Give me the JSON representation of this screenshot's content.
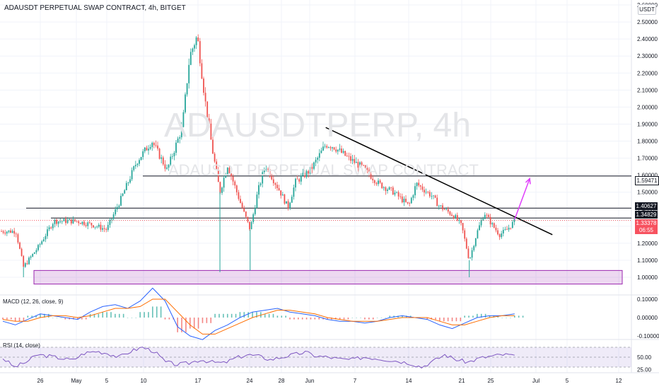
{
  "header": {
    "title": "ADAUSDT PERPETUAL SWAP CONTRACT, 4h, BITGET",
    "currency_button": "USDT"
  },
  "watermark": {
    "symbol": "ADAUSDTPERP, 4h",
    "description": "ADAUSDT PERPETUAL SWAP CONTRACT"
  },
  "colors": {
    "up": "#26a69a",
    "down": "#ef5350",
    "zone": "#9c27b0",
    "arrow": "#e040fb",
    "macd": "#2962ff",
    "signal": "#ff6d00",
    "rsi": "#7e57c2"
  },
  "indicators": {
    "macd_label": "MACD (12, 26, close, 9)",
    "rsi_label": "RSI (14, close)"
  },
  "badges": {
    "level_159": "1.59471",
    "level_140": "1.40627",
    "level_134": "1.34829",
    "last_price": "1.33378",
    "countdown": "06:55"
  },
  "chart_data": [
    {
      "type": "candlestick",
      "title": "ADAUSDT PERPETUAL SWAP CONTRACT, 4h, BITGET",
      "y_axis_ticks": [
        "2.60000",
        "2.50000",
        "2.40000",
        "2.30000",
        "2.20000",
        "2.10000",
        "2.00000",
        "1.90000",
        "1.80000",
        "1.70000",
        "1.60000",
        "1.50000",
        "1.40000",
        "1.30000",
        "1.20000",
        "1.10000",
        "1.00000"
      ],
      "x_axis_ticks": [
        "26",
        "May",
        "5",
        "10",
        "17",
        "24",
        "28",
        "Jun",
        "7",
        "14",
        "21",
        "25",
        "Jul",
        "5",
        "12"
      ],
      "approx_close_path": [
        {
          "date": "Apr 23",
          "price": 1.27
        },
        {
          "date": "Apr 24",
          "price": 1.06
        },
        {
          "date": "Apr 26",
          "price": 1.18
        },
        {
          "date": "Apr 28",
          "price": 1.33
        },
        {
          "date": "May 1",
          "price": 1.33
        },
        {
          "date": "May 3",
          "price": 1.31
        },
        {
          "date": "May 5",
          "price": 1.28
        },
        {
          "date": "May 7",
          "price": 1.47
        },
        {
          "date": "May 9",
          "price": 1.68
        },
        {
          "date": "May 11",
          "price": 1.8
        },
        {
          "date": "May 13",
          "price": 1.63
        },
        {
          "date": "May 15",
          "price": 1.88
        },
        {
          "date": "May 16",
          "price": 2.3
        },
        {
          "date": "May 17",
          "price": 2.42
        },
        {
          "date": "May 18",
          "price": 2.05
        },
        {
          "date": "May 19",
          "price": 1.75
        },
        {
          "date": "May 20",
          "price": 1.5
        },
        {
          "date": "May 21",
          "price": 1.66
        },
        {
          "date": "May 23",
          "price": 1.4
        },
        {
          "date": "May 24",
          "price": 1.28
        },
        {
          "date": "May 25",
          "price": 1.5
        },
        {
          "date": "May 26",
          "price": 1.66
        },
        {
          "date": "May 28",
          "price": 1.5
        },
        {
          "date": "May 29",
          "price": 1.41
        },
        {
          "date": "May 30",
          "price": 1.56
        },
        {
          "date": "Jun 1",
          "price": 1.63
        },
        {
          "date": "Jun 3",
          "price": 1.78
        },
        {
          "date": "Jun 4",
          "price": 1.77
        },
        {
          "date": "Jun 6",
          "price": 1.7
        },
        {
          "date": "Jun 8",
          "price": 1.64
        },
        {
          "date": "Jun 10",
          "price": 1.55
        },
        {
          "date": "Jun 12",
          "price": 1.5
        },
        {
          "date": "Jun 14",
          "price": 1.42
        },
        {
          "date": "Jun 15",
          "price": 1.55
        },
        {
          "date": "Jun 17",
          "price": 1.48
        },
        {
          "date": "Jun 18",
          "price": 1.42
        },
        {
          "date": "Jun 20",
          "price": 1.36
        },
        {
          "date": "Jun 21",
          "price": 1.3
        },
        {
          "date": "Jun 22",
          "price": 1.1
        },
        {
          "date": "Jun 23",
          "price": 1.26
        },
        {
          "date": "Jun 24",
          "price": 1.38
        },
        {
          "date": "Jun 25",
          "price": 1.31
        },
        {
          "date": "Jun 26",
          "price": 1.25
        },
        {
          "date": "Jun 27",
          "price": 1.28
        },
        {
          "date": "Jun 28",
          "price": 1.33
        }
      ],
      "horizontal_levels": [
        1.59471,
        1.40627,
        1.34829
      ],
      "last_price": 1.33378,
      "support_zone": [
        0.96,
        1.04
      ],
      "trendline": [
        {
          "date": "Jun 3",
          "price": 1.88
        },
        {
          "date": "Jul 3",
          "price": 1.25
        }
      ],
      "projection_arrow": [
        {
          "date": "Jun 28",
          "price": 1.34
        },
        {
          "date": "Jun 30",
          "price": 1.58
        }
      ]
    },
    {
      "type": "line",
      "name": "MACD (12, 26, close, 9)",
      "y_axis_ticks": [
        "0.10000",
        "0.00000",
        "-0.10000"
      ],
      "series": [
        {
          "values": [
            -0.02,
            -0.04,
            -0.01,
            0.02,
            0.01,
            0.0,
            -0.01,
            0.03,
            0.06,
            0.07,
            0.05,
            0.09,
            0.16,
            0.09,
            -0.05,
            -0.1,
            -0.12,
            -0.07,
            -0.04,
            0.0,
            0.03,
            0.04,
            0.05,
            0.03,
            0.02,
            0.01,
            -0.01,
            -0.02,
            -0.02,
            -0.03,
            -0.02,
            0.0,
            0.01,
            0.0,
            -0.01,
            -0.04,
            -0.06,
            -0.03,
            0.0,
            0.01,
            0.01,
            0.02
          ]
        },
        {
          "values": [
            -0.01,
            -0.02,
            -0.02,
            0.0,
            0.01,
            0.01,
            0.0,
            0.01,
            0.03,
            0.05,
            0.05,
            0.06,
            0.1,
            0.1,
            0.03,
            -0.04,
            -0.09,
            -0.09,
            -0.06,
            -0.03,
            0.0,
            0.02,
            0.04,
            0.04,
            0.03,
            0.02,
            0.0,
            -0.01,
            -0.02,
            -0.02,
            -0.02,
            -0.01,
            0.0,
            0.0,
            0.0,
            -0.02,
            -0.04,
            -0.04,
            -0.02,
            0.0,
            0.01,
            0.01
          ]
        }
      ]
    },
    {
      "type": "line",
      "name": "RSI (14, close)",
      "y_axis_ticks": [
        "50.00",
        "25.00"
      ],
      "values": [
        48,
        30,
        40,
        55,
        52,
        48,
        44,
        58,
        62,
        58,
        50,
        62,
        70,
        62,
        40,
        35,
        38,
        45,
        40,
        38,
        48,
        55,
        52,
        45,
        50,
        55,
        60,
        52,
        50,
        46,
        45,
        50,
        48,
        45,
        42,
        38,
        30,
        42,
        55,
        45,
        40,
        48,
        52,
        55,
        54
      ]
    }
  ]
}
